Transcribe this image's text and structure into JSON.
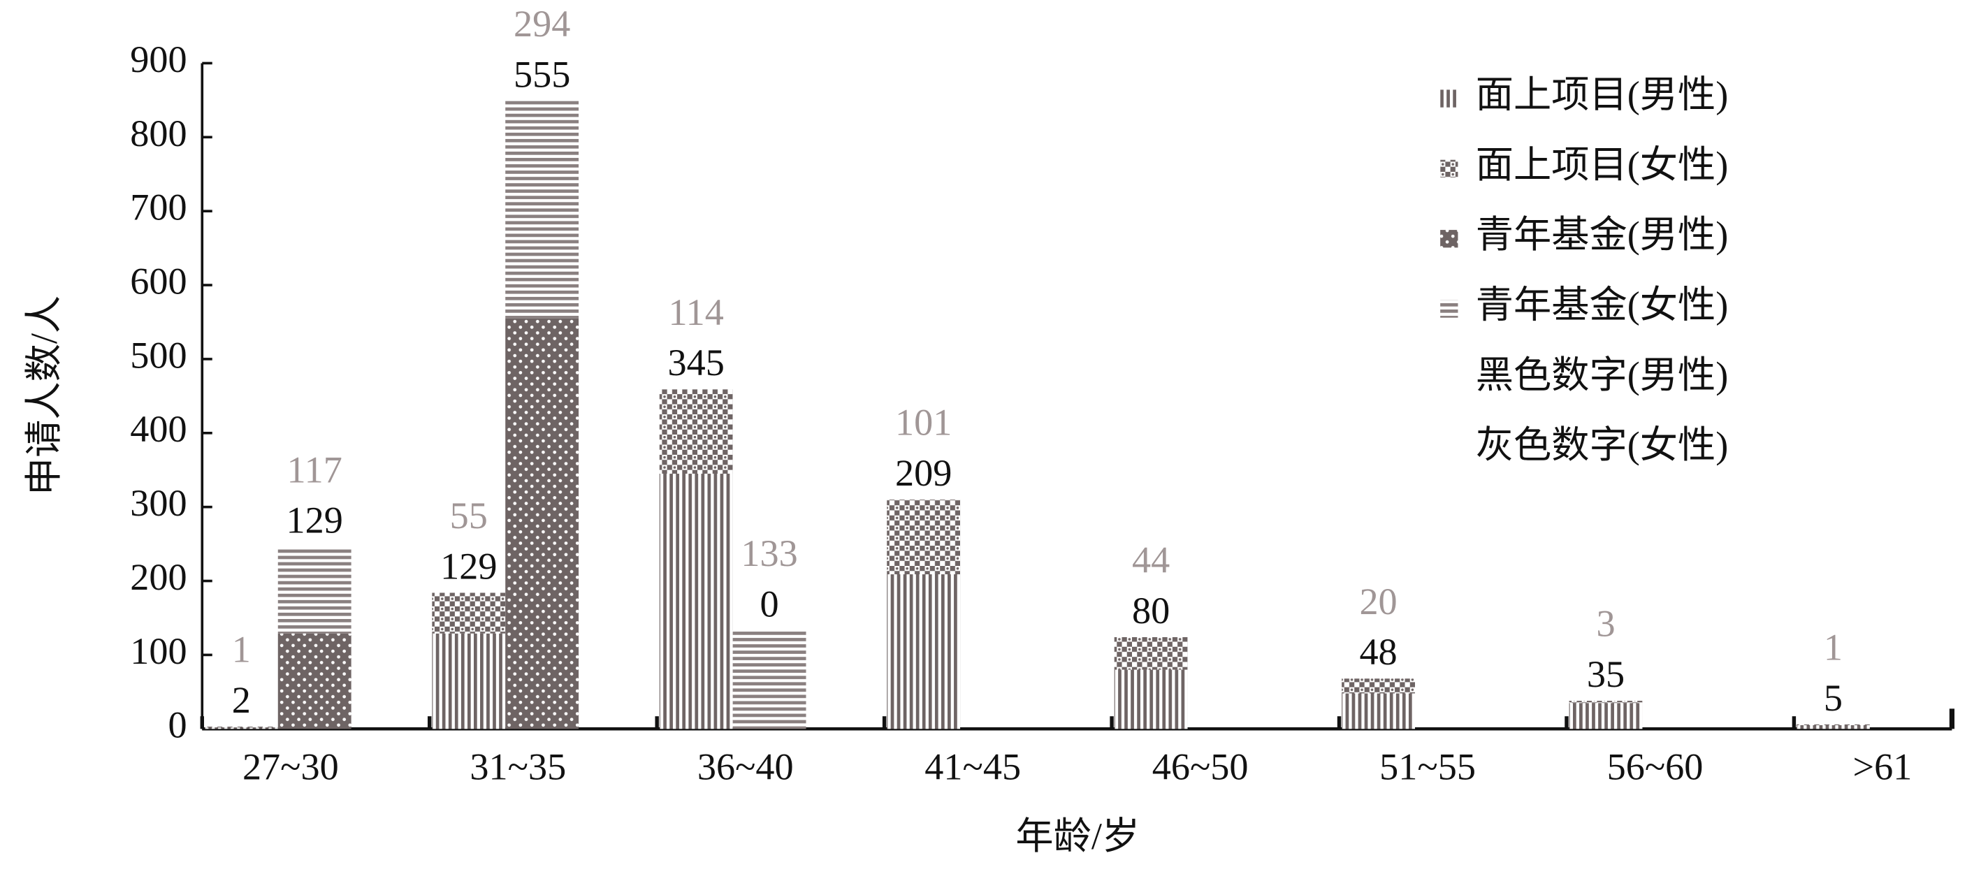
{
  "chart_data": {
    "type": "bar",
    "x_label": "年龄/岁",
    "y_label": "申请人数/人",
    "categories": [
      "27~30",
      "31~35",
      "36~40",
      "41~45",
      "46~50",
      "51~55",
      "56~60",
      ">61"
    ],
    "series": [
      {
        "name": "面上项目(男性)",
        "stack": "面上项目",
        "color": "#6e6464",
        "pattern": "vertical-lines",
        "values": [
          2,
          129,
          345,
          209,
          80,
          48,
          35,
          5
        ]
      },
      {
        "name": "面上项目(女性)",
        "stack": "面上项目",
        "color": "#6e6464",
        "pattern": "checker",
        "values": [
          1,
          55,
          114,
          101,
          44,
          20,
          3,
          1
        ]
      },
      {
        "name": "青年基金(男性)",
        "stack": "青年基金",
        "color": "#6e6464",
        "pattern": "dots",
        "values": [
          129,
          555,
          0,
          null,
          null,
          null,
          null,
          null
        ]
      },
      {
        "name": "青年基金(女性)",
        "stack": "青年基金",
        "color": "#6e6464",
        "pattern": "horizontal-lines",
        "values": [
          117,
          294,
          133,
          null,
          null,
          null,
          null,
          null
        ]
      }
    ],
    "legend_notes": [
      "黑色数字(男性)",
      "灰色数字(女性)"
    ],
    "male_label_color": "#111111",
    "female_label_color": "#a09696",
    "ylim": [
      0,
      900
    ],
    "yticks": [
      0,
      100,
      200,
      300,
      400,
      500,
      600,
      700,
      800,
      900
    ],
    "grid": false,
    "legend": "upper right"
  }
}
